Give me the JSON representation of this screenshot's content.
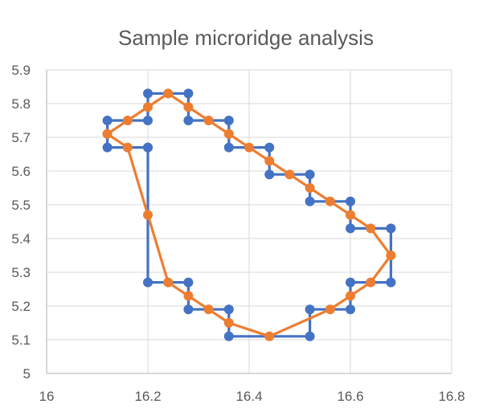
{
  "chart_data": {
    "type": "scatter",
    "title": "Sample microridge analysis",
    "xlabel": "",
    "ylabel": "",
    "xlim": [
      16,
      16.8
    ],
    "ylim": [
      5.0,
      5.9
    ],
    "x_ticks": [
      "16",
      "16.2",
      "16.4",
      "16.6",
      "16.8"
    ],
    "y_ticks": [
      "5",
      "5.1",
      "5.2",
      "5.3",
      "5.4",
      "5.5",
      "5.6",
      "5.7",
      "5.8",
      "5.9"
    ],
    "grid": "vertical and horizontal major gridlines",
    "legend": "none",
    "series": [
      {
        "color": "#4472C4",
        "style": "lines-and-markers",
        "points": [
          [
            16.2,
            5.67
          ],
          [
            16.12,
            5.67
          ],
          [
            16.12,
            5.75
          ],
          [
            16.2,
            5.75
          ],
          [
            16.2,
            5.83
          ],
          [
            16.28,
            5.83
          ],
          [
            16.28,
            5.75
          ],
          [
            16.36,
            5.75
          ],
          [
            16.36,
            5.67
          ],
          [
            16.44,
            5.67
          ],
          [
            16.44,
            5.59
          ],
          [
            16.52,
            5.59
          ],
          [
            16.52,
            5.51
          ],
          [
            16.6,
            5.51
          ],
          [
            16.6,
            5.43
          ],
          [
            16.68,
            5.43
          ],
          [
            16.68,
            5.27
          ],
          [
            16.6,
            5.27
          ],
          [
            16.6,
            5.19
          ],
          [
            16.52,
            5.19
          ],
          [
            16.52,
            5.11
          ],
          [
            16.36,
            5.11
          ],
          [
            16.36,
            5.19
          ],
          [
            16.28,
            5.19
          ],
          [
            16.28,
            5.27
          ],
          [
            16.2,
            5.27
          ],
          [
            16.2,
            5.67
          ]
        ]
      },
      {
        "color": "#ED7D31",
        "style": "lines-and-markers",
        "points": [
          [
            16.12,
            5.71
          ],
          [
            16.16,
            5.75
          ],
          [
            16.2,
            5.79
          ],
          [
            16.24,
            5.83
          ],
          [
            16.28,
            5.79
          ],
          [
            16.32,
            5.75
          ],
          [
            16.36,
            5.71
          ],
          [
            16.4,
            5.67
          ],
          [
            16.44,
            5.63
          ],
          [
            16.48,
            5.59
          ],
          [
            16.52,
            5.55
          ],
          [
            16.56,
            5.51
          ],
          [
            16.6,
            5.47
          ],
          [
            16.64,
            5.43
          ],
          [
            16.68,
            5.35
          ],
          [
            16.64,
            5.27
          ],
          [
            16.6,
            5.23
          ],
          [
            16.56,
            5.19
          ],
          [
            16.44,
            5.11
          ],
          [
            16.36,
            5.15
          ],
          [
            16.32,
            5.19
          ],
          [
            16.28,
            5.23
          ],
          [
            16.24,
            5.27
          ],
          [
            16.2,
            5.47
          ],
          [
            16.16,
            5.67
          ],
          [
            16.12,
            5.71
          ]
        ]
      }
    ]
  }
}
